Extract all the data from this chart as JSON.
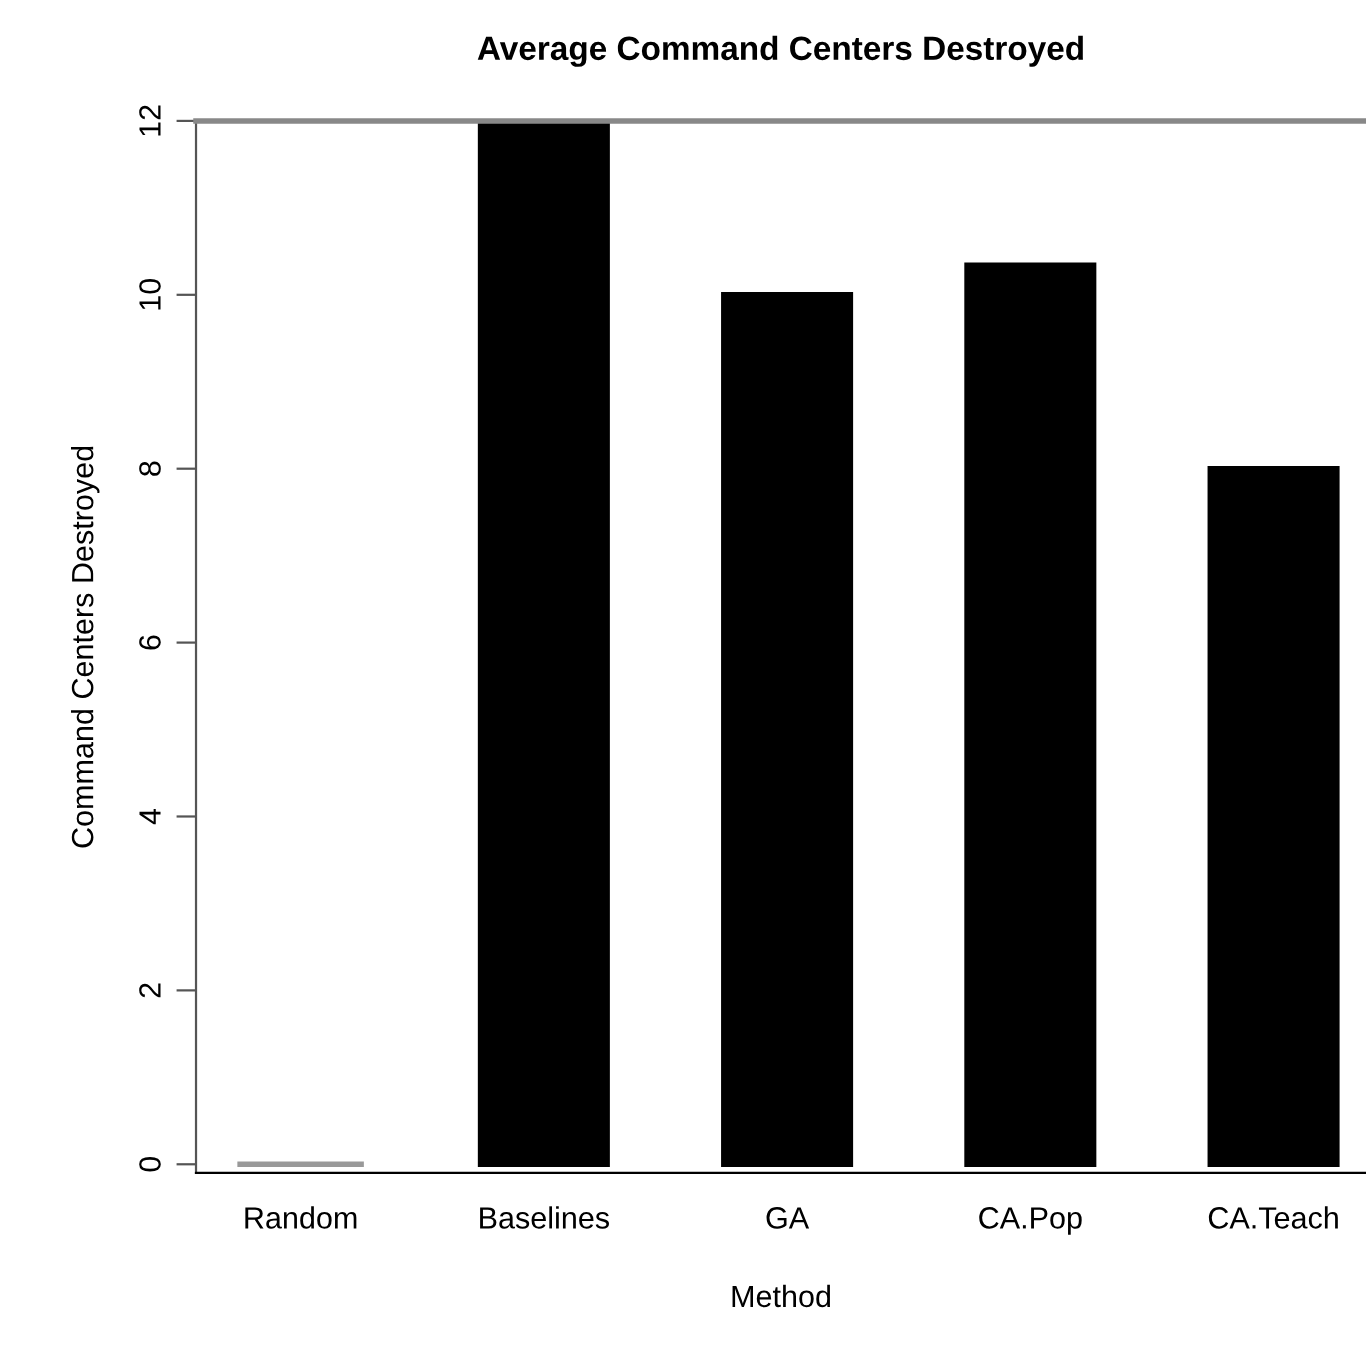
{
  "chart_data": {
    "type": "bar",
    "title": "Average Command Centers Destroyed",
    "xlabel": "Method",
    "ylabel": "Command Centers Destroyed",
    "categories": [
      "Random",
      "Baselines",
      "GA",
      "CA.Pop",
      "CA.Teach"
    ],
    "values": [
      0,
      12,
      10,
      10.34,
      8
    ],
    "colors": [
      "#999999",
      "#000000",
      "#000000",
      "#000000",
      "#000000"
    ],
    "ylim": [
      -0.1,
      12
    ],
    "yticks": [
      0,
      2,
      4,
      6,
      8,
      10,
      12
    ],
    "grid": false,
    "legend": false
  }
}
